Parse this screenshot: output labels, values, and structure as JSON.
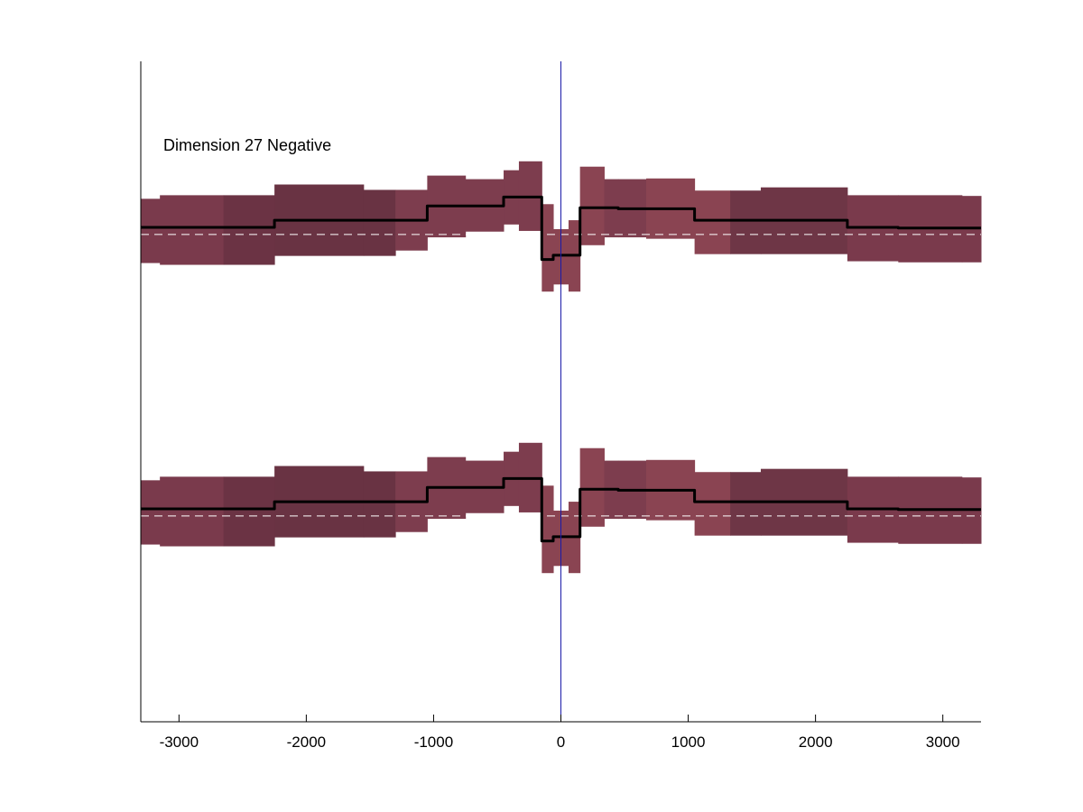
{
  "chart_data": {
    "type": "area",
    "title": "",
    "xlabel": "",
    "ylabel": "",
    "annotation": "Dimension 27 Negative",
    "xlim": [
      -3300,
      3300
    ],
    "x_ticks": [
      -3000,
      -2000,
      -1000,
      0,
      1000,
      2000,
      3000
    ],
    "x_tick_labels": [
      "-3000",
      "-2000",
      "-1000",
      "0",
      "1000",
      "2000",
      "3000"
    ],
    "grid": false,
    "reference_line_x": 0,
    "colors": {
      "line": "#000000",
      "baseline": "#ffffff",
      "vline": "#1a1aa8",
      "axis": "#000000"
    },
    "panels": [
      {
        "name": "upper",
        "baseline": 0,
        "ylim": [
          -4.4,
          4.85
        ],
        "segments": [
          {
            "x0": -3300,
            "x1": -3150,
            "lo": -0.8,
            "hi": 1.0,
            "value": 0.2,
            "color": "#7a3a4c"
          },
          {
            "x0": -3150,
            "x1": -2650,
            "lo": -0.85,
            "hi": 1.1,
            "value": 0.2,
            "color": "#7a3a4c"
          },
          {
            "x0": -2650,
            "x1": -2250,
            "lo": -0.85,
            "hi": 1.1,
            "value": 0.2,
            "color": "#6b3344"
          },
          {
            "x0": -2250,
            "x1": -1550,
            "lo": -0.6,
            "hi": 1.4,
            "value": 0.4,
            "color": "#693343"
          },
          {
            "x0": -1550,
            "x1": -1300,
            "lo": -0.6,
            "hi": 1.25,
            "value": 0.4,
            "color": "#693343"
          },
          {
            "x0": -1300,
            "x1": -1050,
            "lo": -0.45,
            "hi": 1.25,
            "value": 0.4,
            "color": "#7d3d4e"
          },
          {
            "x0": -1050,
            "x1": -750,
            "lo": -0.08,
            "hi": 1.65,
            "value": 0.8,
            "color": "#7d3d4e"
          },
          {
            "x0": -750,
            "x1": -450,
            "lo": 0.08,
            "hi": 1.55,
            "value": 0.8,
            "color": "#7d3d4e"
          },
          {
            "x0": -450,
            "x1": -330,
            "lo": 0.28,
            "hi": 1.8,
            "value": 1.05,
            "color": "#7d3d4e"
          },
          {
            "x0": -330,
            "x1": -150,
            "lo": 0.1,
            "hi": 2.05,
            "value": 1.05,
            "color": "#7d3d4e"
          },
          {
            "x0": -150,
            "x1": -60,
            "lo": -1.6,
            "hi": 0.85,
            "value": -0.7,
            "color": "#8a4452"
          },
          {
            "x0": -60,
            "x1": 0,
            "lo": -1.4,
            "hi": 0.15,
            "value": -0.58,
            "color": "#8a4452"
          },
          {
            "x0": 0,
            "x1": 60,
            "lo": -1.4,
            "hi": 0.15,
            "value": -0.58,
            "color": "#8a4452"
          },
          {
            "x0": 60,
            "x1": 150,
            "lo": -1.6,
            "hi": 0.4,
            "value": -0.58,
            "color": "#8a4452"
          },
          {
            "x0": 150,
            "x1": 340,
            "lo": -0.3,
            "hi": 1.9,
            "value": 0.75,
            "color": "#8a4452"
          },
          {
            "x0": 340,
            "x1": 450,
            "lo": -0.08,
            "hi": 1.55,
            "value": 0.75,
            "color": "#7d3d4e"
          },
          {
            "x0": 450,
            "x1": 670,
            "lo": -0.08,
            "hi": 1.55,
            "value": 0.72,
            "color": "#7d3d4e"
          },
          {
            "x0": 670,
            "x1": 1050,
            "lo": -0.12,
            "hi": 1.57,
            "value": 0.72,
            "color": "#8a4452"
          },
          {
            "x0": 1050,
            "x1": 1330,
            "lo": -0.55,
            "hi": 1.23,
            "value": 0.4,
            "color": "#8a4452"
          },
          {
            "x0": 1330,
            "x1": 1570,
            "lo": -0.55,
            "hi": 1.23,
            "value": 0.4,
            "color": "#6e3646"
          },
          {
            "x0": 1570,
            "x1": 2250,
            "lo": -0.55,
            "hi": 1.32,
            "value": 0.4,
            "color": "#6e3646"
          },
          {
            "x0": 2250,
            "x1": 2650,
            "lo": -0.75,
            "hi": 1.1,
            "value": 0.2,
            "color": "#7a3a4c"
          },
          {
            "x0": 2650,
            "x1": 3150,
            "lo": -0.78,
            "hi": 1.1,
            "value": 0.18,
            "color": "#7a3a4c"
          },
          {
            "x0": 3150,
            "x1": 3300,
            "lo": -0.78,
            "hi": 1.08,
            "value": 0.18,
            "color": "#7a3a4c"
          }
        ]
      },
      {
        "name": "lower",
        "baseline": 0,
        "ylim": [
          -4.4,
          4.85
        ],
        "segments": [
          {
            "x0": -3300,
            "x1": -3150,
            "lo": -0.8,
            "hi": 1.0,
            "value": 0.2,
            "color": "#7a3a4c"
          },
          {
            "x0": -3150,
            "x1": -2650,
            "lo": -0.85,
            "hi": 1.1,
            "value": 0.2,
            "color": "#7a3a4c"
          },
          {
            "x0": -2650,
            "x1": -2250,
            "lo": -0.85,
            "hi": 1.1,
            "value": 0.2,
            "color": "#6b3344"
          },
          {
            "x0": -2250,
            "x1": -1550,
            "lo": -0.6,
            "hi": 1.4,
            "value": 0.4,
            "color": "#693343"
          },
          {
            "x0": -1550,
            "x1": -1300,
            "lo": -0.6,
            "hi": 1.25,
            "value": 0.4,
            "color": "#693343"
          },
          {
            "x0": -1300,
            "x1": -1050,
            "lo": -0.45,
            "hi": 1.25,
            "value": 0.4,
            "color": "#7d3d4e"
          },
          {
            "x0": -1050,
            "x1": -750,
            "lo": -0.08,
            "hi": 1.65,
            "value": 0.8,
            "color": "#7d3d4e"
          },
          {
            "x0": -750,
            "x1": -450,
            "lo": 0.08,
            "hi": 1.55,
            "value": 0.8,
            "color": "#7d3d4e"
          },
          {
            "x0": -450,
            "x1": -330,
            "lo": 0.28,
            "hi": 1.8,
            "value": 1.05,
            "color": "#7d3d4e"
          },
          {
            "x0": -330,
            "x1": -150,
            "lo": 0.1,
            "hi": 2.05,
            "value": 1.05,
            "color": "#7d3d4e"
          },
          {
            "x0": -150,
            "x1": -60,
            "lo": -1.6,
            "hi": 0.85,
            "value": -0.7,
            "color": "#8a4452"
          },
          {
            "x0": -60,
            "x1": 0,
            "lo": -1.4,
            "hi": 0.15,
            "value": -0.58,
            "color": "#8a4452"
          },
          {
            "x0": 0,
            "x1": 60,
            "lo": -1.4,
            "hi": 0.15,
            "value": -0.58,
            "color": "#8a4452"
          },
          {
            "x0": 60,
            "x1": 150,
            "lo": -1.6,
            "hi": 0.4,
            "value": -0.58,
            "color": "#8a4452"
          },
          {
            "x0": 150,
            "x1": 340,
            "lo": -0.3,
            "hi": 1.9,
            "value": 0.75,
            "color": "#8a4452"
          },
          {
            "x0": 340,
            "x1": 450,
            "lo": -0.08,
            "hi": 1.55,
            "value": 0.75,
            "color": "#7d3d4e"
          },
          {
            "x0": 450,
            "x1": 670,
            "lo": -0.08,
            "hi": 1.55,
            "value": 0.72,
            "color": "#7d3d4e"
          },
          {
            "x0": 670,
            "x1": 1050,
            "lo": -0.12,
            "hi": 1.57,
            "value": 0.72,
            "color": "#8a4452"
          },
          {
            "x0": 1050,
            "x1": 1330,
            "lo": -0.55,
            "hi": 1.23,
            "value": 0.4,
            "color": "#8a4452"
          },
          {
            "x0": 1330,
            "x1": 1570,
            "lo": -0.55,
            "hi": 1.23,
            "value": 0.4,
            "color": "#6e3646"
          },
          {
            "x0": 1570,
            "x1": 2250,
            "lo": -0.55,
            "hi": 1.32,
            "value": 0.4,
            "color": "#6e3646"
          },
          {
            "x0": 2250,
            "x1": 2650,
            "lo": -0.75,
            "hi": 1.1,
            "value": 0.2,
            "color": "#7a3a4c"
          },
          {
            "x0": 2650,
            "x1": 3150,
            "lo": -0.78,
            "hi": 1.1,
            "value": 0.18,
            "color": "#7a3a4c"
          },
          {
            "x0": 3150,
            "x1": 3300,
            "lo": -0.78,
            "hi": 1.08,
            "value": 0.18,
            "color": "#7a3a4c"
          }
        ]
      }
    ]
  }
}
